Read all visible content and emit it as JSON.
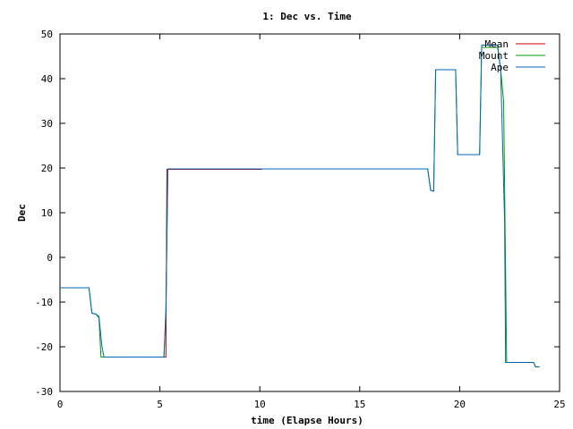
{
  "chart_data": {
    "type": "line",
    "title": "1: Dec vs. Time",
    "xlabel": "time (Elapse Hours)",
    "ylabel": "Dec",
    "xlim": [
      0,
      25
    ],
    "ylim": [
      -30,
      50
    ],
    "xticks": [
      0,
      5,
      10,
      15,
      20,
      25
    ],
    "yticks": [
      -30,
      -20,
      -10,
      0,
      10,
      20,
      30,
      40,
      50
    ],
    "grid": false,
    "legend_position": "top-right",
    "series": [
      {
        "name": "Mean",
        "color": "#cc0000",
        "points": [
          [
            2.2,
            -22.3
          ],
          [
            2.6,
            -22.3
          ],
          [
            5.3,
            -22.3
          ],
          [
            5.35,
            19.7
          ],
          [
            10.1,
            19.7
          ]
        ]
      },
      {
        "name": "Mount",
        "color": "#009900",
        "points": [
          [
            0,
            -6.8
          ],
          [
            1.45,
            -6.8
          ],
          [
            1.6,
            -12.5
          ],
          [
            1.8,
            -12.7
          ],
          [
            1.95,
            -13.5
          ],
          [
            2.05,
            -22.3
          ],
          [
            5.2,
            -22.3
          ],
          [
            5.3,
            -12
          ],
          [
            5.4,
            19.8
          ],
          [
            18.4,
            19.8
          ],
          [
            18.55,
            15
          ],
          [
            18.7,
            14.8
          ],
          [
            18.8,
            42
          ],
          [
            19.8,
            42
          ],
          [
            19.9,
            23
          ],
          [
            21.0,
            23
          ],
          [
            21.1,
            47
          ],
          [
            21.9,
            47
          ],
          [
            22.05,
            42
          ],
          [
            22.2,
            35
          ],
          [
            22.35,
            -23.5
          ],
          [
            23.7,
            -23.5
          ],
          [
            23.8,
            -24.5
          ],
          [
            24.0,
            -24.5
          ]
        ]
      },
      {
        "name": "Ape",
        "color": "#0066bb",
        "points": [
          [
            0,
            -6.8
          ],
          [
            1.45,
            -6.8
          ],
          [
            1.6,
            -12.5
          ],
          [
            1.8,
            -12.7
          ],
          [
            1.95,
            -13.2
          ],
          [
            2.1,
            -20
          ],
          [
            2.2,
            -22.3
          ],
          [
            5.2,
            -22.3
          ],
          [
            5.3,
            -12
          ],
          [
            5.4,
            19.8
          ],
          [
            18.4,
            19.8
          ],
          [
            18.55,
            15
          ],
          [
            18.7,
            14.8
          ],
          [
            18.8,
            42
          ],
          [
            19.8,
            42
          ],
          [
            19.9,
            23
          ],
          [
            21.0,
            23
          ],
          [
            21.1,
            47.5
          ],
          [
            21.9,
            47.5
          ],
          [
            22.05,
            42
          ],
          [
            22.15,
            25
          ],
          [
            22.25,
            8
          ],
          [
            22.3,
            -23.5
          ],
          [
            23.7,
            -23.5
          ],
          [
            23.8,
            -24.5
          ],
          [
            24.0,
            -24.5
          ]
        ]
      }
    ]
  }
}
